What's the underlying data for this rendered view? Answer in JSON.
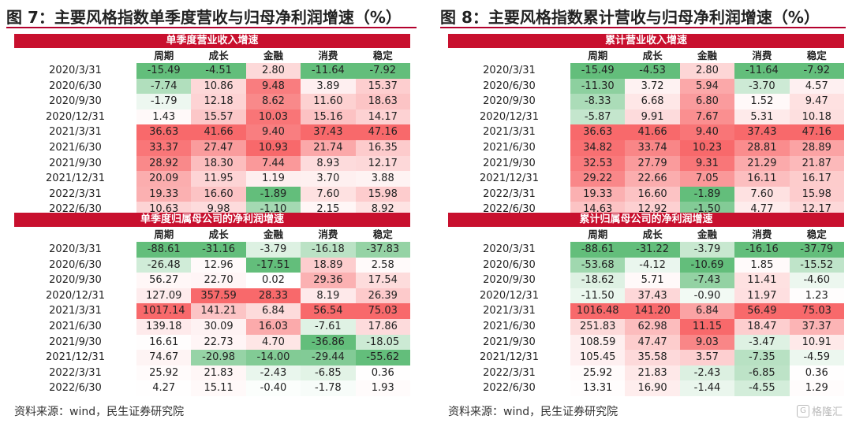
{
  "left": {
    "title": "图 7：主要风格指数单季度营收与归母净利润增速（%）",
    "source": "资料来源：wind，民生证券研究院",
    "tables": [
      {
        "header": "单季度营业收入增速",
        "columns": [
          "周期",
          "成长",
          "金融",
          "消费",
          "稳定"
        ],
        "rows": [
          {
            "date": "2020/3/31",
            "values": [
              "-15.49",
              "-4.51",
              "2.80",
              "-11.64",
              "-7.92"
            ]
          },
          {
            "date": "2020/6/30",
            "values": [
              "-7.74",
              "10.86",
              "9.48",
              "3.89",
              "15.37"
            ]
          },
          {
            "date": "2020/9/30",
            "values": [
              "-1.79",
              "12.18",
              "8.62",
              "11.60",
              "18.63"
            ]
          },
          {
            "date": "2020/12/31",
            "values": [
              "1.43",
              "15.57",
              "10.03",
              "15.16",
              "14.17"
            ]
          },
          {
            "date": "2021/3/31",
            "values": [
              "36.63",
              "41.66",
              "9.40",
              "37.43",
              "47.16"
            ]
          },
          {
            "date": "2021/6/30",
            "values": [
              "33.37",
              "27.47",
              "10.93",
              "21.74",
              "16.35"
            ]
          },
          {
            "date": "2021/9/30",
            "values": [
              "28.92",
              "18.30",
              "7.44",
              "8.93",
              "12.17"
            ]
          },
          {
            "date": "2021/12/31",
            "values": [
              "20.09",
              "11.95",
              "1.19",
              "3.70",
              "3.88"
            ]
          },
          {
            "date": "2022/3/31",
            "values": [
              "19.33",
              "16.60",
              "-1.89",
              "7.60",
              "15.98"
            ]
          },
          {
            "date": "2022/6/30",
            "values": [
              "10.63",
              "9.98",
              "-1.10",
              "2.15",
              "8.92"
            ]
          }
        ]
      },
      {
        "header": "单季度归属母公司的净利润增速",
        "columns": [
          "周期",
          "成长",
          "金融",
          "消费",
          "稳定"
        ],
        "rows": [
          {
            "date": "2020/3/31",
            "values": [
              "-88.61",
              "-31.16",
              "-3.79",
              "-16.18",
              "-37.83"
            ]
          },
          {
            "date": "2020/6/30",
            "values": [
              "-26.48",
              "12.96",
              "-17.51",
              "18.89",
              "2.58"
            ]
          },
          {
            "date": "2020/9/30",
            "values": [
              "56.27",
              "22.70",
              "0.02",
              "29.36",
              "17.54"
            ]
          },
          {
            "date": "2020/12/31",
            "values": [
              "127.09",
              "357.59",
              "28.33",
              "8.19",
              "26.39"
            ]
          },
          {
            "date": "2021/3/31",
            "values": [
              "1017.14",
              "141.21",
              "6.84",
              "56.54",
              "75.03"
            ]
          },
          {
            "date": "2021/6/30",
            "values": [
              "139.18",
              "30.09",
              "16.03",
              "-7.61",
              "17.86"
            ]
          },
          {
            "date": "2021/9/30",
            "values": [
              "16.61",
              "22.73",
              "4.70",
              "-36.86",
              "-18.05"
            ]
          },
          {
            "date": "2021/12/31",
            "values": [
              "74.67",
              "-20.98",
              "-14.00",
              "-29.44",
              "-55.62"
            ]
          },
          {
            "date": "2022/3/31",
            "values": [
              "25.92",
              "21.83",
              "-2.43",
              "-6.85",
              "0.36"
            ]
          },
          {
            "date": "2022/6/30",
            "values": [
              "4.27",
              "15.11",
              "-0.40",
              "-1.78",
              "1.93"
            ]
          }
        ]
      }
    ]
  },
  "right": {
    "title": "图 8：主要风格指数累计营收与归母净利润增速（%）",
    "source": "资料来源：wind，民生证券研究院",
    "tables": [
      {
        "header": "累计营业收入增速",
        "columns": [
          "周期",
          "成长",
          "金融",
          "消费",
          "稳定"
        ],
        "rows": [
          {
            "date": "2020/3/31",
            "values": [
              "-15.49",
              "-4.53",
              "2.80",
              "-11.64",
              "-7.92"
            ]
          },
          {
            "date": "2020/6/30",
            "values": [
              "-11.30",
              "3.72",
              "5.94",
              "-3.70",
              "4.57"
            ]
          },
          {
            "date": "2020/9/30",
            "values": [
              "-8.33",
              "6.68",
              "6.80",
              "1.52",
              "9.47"
            ]
          },
          {
            "date": "2020/12/31",
            "values": [
              "-5.87",
              "9.91",
              "7.67",
              "5.31",
              "10.18"
            ]
          },
          {
            "date": "2021/3/31",
            "values": [
              "36.63",
              "41.66",
              "9.40",
              "37.43",
              "47.16"
            ]
          },
          {
            "date": "2021/6/30",
            "values": [
              "34.82",
              "33.74",
              "10.23",
              "28.81",
              "28.89"
            ]
          },
          {
            "date": "2021/9/30",
            "values": [
              "32.53",
              "27.79",
              "9.31",
              "21.29",
              "21.87"
            ]
          },
          {
            "date": "2021/12/31",
            "values": [
              "29.22",
              "22.66",
              "7.05",
              "16.11",
              "16.17"
            ]
          },
          {
            "date": "2022/3/31",
            "values": [
              "19.33",
              "16.60",
              "-1.89",
              "7.60",
              "15.98"
            ]
          },
          {
            "date": "2022/6/30",
            "values": [
              "14.63",
              "12.92",
              "-1.50",
              "4.77",
              "12.17"
            ]
          }
        ]
      },
      {
        "header": "累计归属母公司的净利润增速",
        "columns": [
          "周期",
          "成长",
          "金融",
          "消费",
          "稳定"
        ],
        "rows": [
          {
            "date": "2020/3/31",
            "values": [
              "-88.61",
              "-31.22",
              "-3.79",
              "-16.16",
              "-37.79"
            ]
          },
          {
            "date": "2020/6/30",
            "values": [
              "-53.68",
              "-4.12",
              "-10.69",
              "1.85",
              "-15.52"
            ]
          },
          {
            "date": "2020/9/30",
            "values": [
              "-18.62",
              "5.71",
              "-7.43",
              "11.41",
              "-4.60"
            ]
          },
          {
            "date": "2020/12/31",
            "values": [
              "-11.50",
              "37.43",
              "-0.90",
              "11.97",
              "1.23"
            ]
          },
          {
            "date": "2021/3/31",
            "values": [
              "1016.48",
              "141.20",
              "6.84",
              "56.49",
              "75.03"
            ]
          },
          {
            "date": "2021/6/30",
            "values": [
              "251.83",
              "62.98",
              "11.15",
              "18.47",
              "37.37"
            ]
          },
          {
            "date": "2021/9/30",
            "values": [
              "108.59",
              "47.47",
              "9.03",
              "-3.47",
              "10.91"
            ]
          },
          {
            "date": "2021/12/31",
            "values": [
              "105.45",
              "35.58",
              "3.57",
              "-7.35",
              "-4.59"
            ]
          },
          {
            "date": "2022/3/31",
            "values": [
              "25.92",
              "21.83",
              "-2.43",
              "-6.85",
              "0.36"
            ]
          },
          {
            "date": "2022/6/30",
            "values": [
              "13.31",
              "16.90",
              "-1.44",
              "-4.55",
              "1.29"
            ]
          }
        ]
      }
    ]
  },
  "watermark": {
    "logo": "G",
    "text": "格隆汇"
  },
  "colors": {
    "header_bar": "#c8102e",
    "high": "#f8696b",
    "mid": "#ffffff",
    "low": "#63be7b",
    "title_rule": "#b3002d"
  }
}
